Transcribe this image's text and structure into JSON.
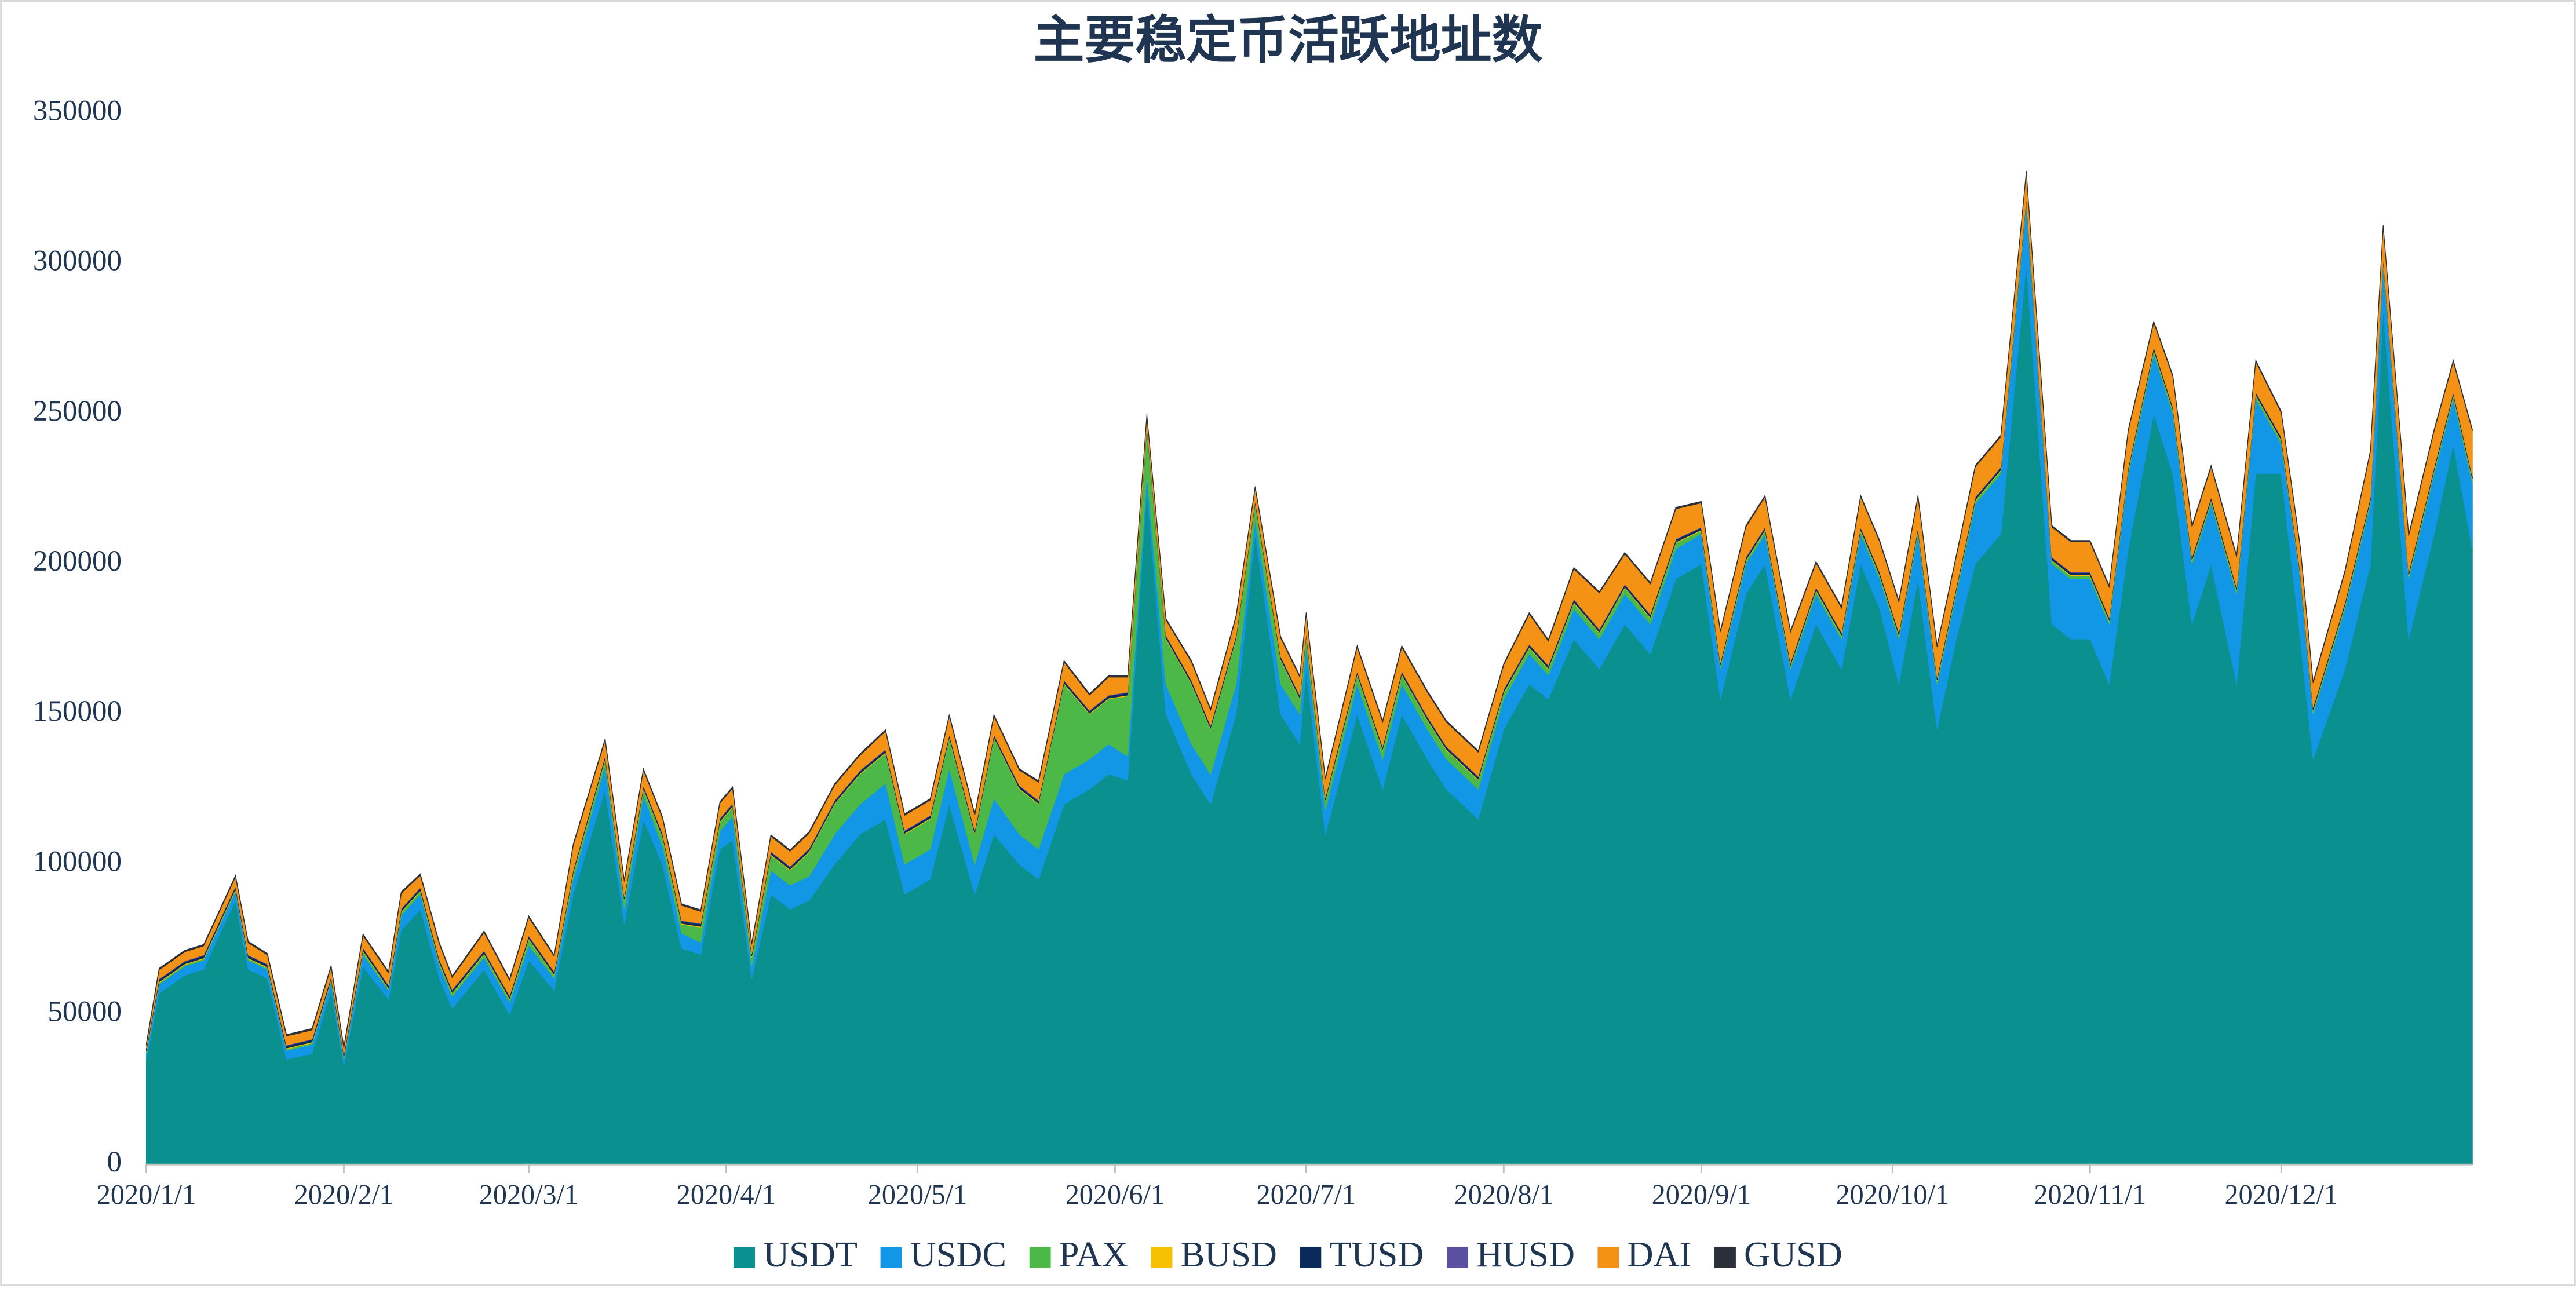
{
  "chart_data": {
    "type": "stacked_area",
    "title": "主要稳定币活跃地址数",
    "x": [
      "2020/1/1",
      "2020/1/3",
      "2020/1/7",
      "2020/1/10",
      "2020/1/15",
      "2020/1/17",
      "2020/1/20",
      "2020/1/23",
      "2020/1/27",
      "2020/1/30",
      "2020/2/1",
      "2020/2/4",
      "2020/2/8",
      "2020/2/10",
      "2020/2/13",
      "2020/2/16",
      "2020/2/18",
      "2020/2/23",
      "2020/2/27",
      "2020/3/1",
      "2020/3/5",
      "2020/3/8",
      "2020/3/13",
      "2020/3/16",
      "2020/3/19",
      "2020/3/22",
      "2020/3/25",
      "2020/3/28",
      "2020/3/31",
      "2020/4/2",
      "2020/4/5",
      "2020/4/8",
      "2020/4/11",
      "2020/4/14",
      "2020/4/18",
      "2020/4/22",
      "2020/4/26",
      "2020/4/29",
      "2020/5/3",
      "2020/5/6",
      "2020/5/10",
      "2020/5/13",
      "2020/5/17",
      "2020/5/20",
      "2020/5/24",
      "2020/5/28",
      "2020/5/31",
      "2020/6/3",
      "2020/6/6",
      "2020/6/9",
      "2020/6/13",
      "2020/6/16",
      "2020/6/20",
      "2020/6/23",
      "2020/6/27",
      "2020/6/30",
      "2020/7/1",
      "2020/7/4",
      "2020/7/9",
      "2020/7/13",
      "2020/7/16",
      "2020/7/20",
      "2020/7/23",
      "2020/7/28",
      "2020/8/1",
      "2020/8/5",
      "2020/8/8",
      "2020/8/12",
      "2020/8/16",
      "2020/8/20",
      "2020/8/24",
      "2020/8/28",
      "2020/9/1",
      "2020/9/4",
      "2020/9/8",
      "2020/9/11",
      "2020/9/15",
      "2020/9/19",
      "2020/9/23",
      "2020/9/26",
      "2020/9/29",
      "2020/10/2",
      "2020/10/5",
      "2020/10/8",
      "2020/10/11",
      "2020/10/14",
      "2020/10/18",
      "2020/10/22",
      "2020/10/26",
      "2020/10/29",
      "2020/11/1",
      "2020/11/4",
      "2020/11/7",
      "2020/11/11",
      "2020/11/14",
      "2020/11/17",
      "2020/11/20",
      "2020/11/24",
      "2020/11/27",
      "2020/12/1",
      "2020/12/4",
      "2020/12/6",
      "2020/12/11",
      "2020/12/15",
      "2020/12/17",
      "2020/12/21",
      "2020/12/25",
      "2020/12/28",
      "2020/12/31"
    ],
    "series": [
      {
        "name": "USDT",
        "color": "#0b9090",
        "values": [
          35000,
          57000,
          63000,
          65000,
          88000,
          65000,
          62000,
          35000,
          37000,
          58000,
          33000,
          66000,
          55000,
          78000,
          85000,
          62000,
          52000,
          65000,
          50000,
          68000,
          58000,
          90000,
          125000,
          80000,
          115000,
          100000,
          72000,
          70000,
          105000,
          108000,
          62000,
          90000,
          85000,
          88000,
          100000,
          110000,
          115000,
          90000,
          95000,
          120000,
          90000,
          110000,
          100000,
          95000,
          120000,
          125000,
          130000,
          128000,
          225000,
          150000,
          130000,
          120000,
          150000,
          210000,
          150000,
          140000,
          165000,
          110000,
          150000,
          125000,
          150000,
          135000,
          125000,
          115000,
          145000,
          160000,
          155000,
          175000,
          165000,
          180000,
          170000,
          195000,
          200000,
          155000,
          190000,
          200000,
          155000,
          180000,
          165000,
          200000,
          185000,
          160000,
          195000,
          145000,
          175000,
          200000,
          210000,
          300000,
          180000,
          175000,
          175000,
          160000,
          205000,
          250000,
          230000,
          180000,
          200000,
          160000,
          230000,
          230000,
          175000,
          135000,
          165000,
          200000,
          285000,
          175000,
          210000,
          240000,
          205000
        ]
      },
      {
        "name": "USDC",
        "color": "#1296e6",
        "values": [
          2000,
          3000,
          3000,
          3000,
          3000,
          3000,
          3000,
          3000,
          3000,
          3000,
          2000,
          4000,
          3000,
          5000,
          5000,
          4000,
          4000,
          4000,
          4000,
          5000,
          4000,
          5000,
          8000,
          5000,
          8000,
          6000,
          5000,
          4000,
          6000,
          8000,
          4000,
          8000,
          8000,
          8000,
          10000,
          10000,
          12000,
          10000,
          10000,
          12000,
          10000,
          12000,
          10000,
          10000,
          10000,
          10000,
          10000,
          8000,
          5000,
          10000,
          10000,
          10000,
          10000,
          5000,
          10000,
          10000,
          8000,
          8000,
          10000,
          10000,
          10000,
          10000,
          10000,
          10000,
          10000,
          10000,
          8000,
          10000,
          10000,
          10000,
          10000,
          10000,
          10000,
          10000,
          10000,
          10000,
          10000,
          10000,
          10000,
          10000,
          10000,
          15000,
          15000,
          15000,
          15000,
          20000,
          20000,
          20000,
          20000,
          20000,
          20000,
          20000,
          25000,
          20000,
          20000,
          20000,
          20000,
          30000,
          25000,
          10000,
          20000,
          15000,
          20000,
          20000,
          15000,
          20000,
          20000,
          15000,
          22000
        ]
      },
      {
        "name": "PAX",
        "color": "#4cb848",
        "values": [
          500,
          500,
          500,
          500,
          500,
          500,
          500,
          500,
          500,
          500,
          500,
          1000,
          500,
          1000,
          1000,
          1000,
          1000,
          1000,
          1000,
          2000,
          1000,
          2000,
          2000,
          3000,
          2000,
          3000,
          3000,
          5000,
          3000,
          3000,
          3000,
          5000,
          5000,
          8000,
          10000,
          10000,
          10000,
          10000,
          10000,
          10000,
          10000,
          20000,
          15000,
          15000,
          30000,
          15000,
          15000,
          20000,
          15000,
          15000,
          20000,
          15000,
          15000,
          5000,
          8000,
          5000,
          3000,
          3000,
          3000,
          3000,
          3000,
          3000,
          3000,
          3000,
          2000,
          2000,
          2000,
          2000,
          2000,
          2000,
          2000,
          2000,
          1000,
          1000,
          1000,
          1000,
          1000,
          1000,
          1000,
          1000,
          1000,
          1000,
          1000,
          1000,
          1000,
          1000,
          1000,
          1000,
          1000,
          1000,
          1000,
          1000,
          1000,
          1000,
          1000,
          1000,
          1000,
          1000,
          1000,
          1000,
          1000,
          1000,
          1000,
          1000,
          1000,
          1000,
          1000,
          1000,
          1000
        ]
      },
      {
        "name": "BUSD",
        "color": "#f5c000",
        "values": [
          300,
          300,
          300,
          300,
          300,
          300,
          300,
          300,
          300,
          300,
          300,
          300,
          300,
          300,
          300,
          300,
          300,
          300,
          300,
          300,
          300,
          300,
          300,
          300,
          300,
          300,
          300,
          300,
          300,
          300,
          300,
          300,
          300,
          300,
          300,
          300,
          300,
          300,
          300,
          300,
          300,
          300,
          300,
          300,
          300,
          300,
          300,
          300,
          300,
          300,
          300,
          300,
          300,
          300,
          300,
          300,
          300,
          300,
          300,
          300,
          300,
          300,
          300,
          300,
          300,
          300,
          300,
          300,
          300,
          300,
          300,
          300,
          300,
          300,
          300,
          300,
          300,
          300,
          300,
          300,
          300,
          300,
          300,
          300,
          300,
          300,
          300,
          300,
          300,
          300,
          300,
          300,
          300,
          300,
          300,
          300,
          300,
          300,
          300,
          300,
          300,
          300,
          300,
          300,
          300,
          300,
          300,
          300,
          300
        ]
      },
      {
        "name": "TUSD",
        "color": "#0a2a5c",
        "values": [
          800,
          800,
          800,
          800,
          800,
          800,
          800,
          800,
          800,
          800,
          800,
          800,
          800,
          800,
          800,
          800,
          800,
          800,
          800,
          800,
          800,
          800,
          800,
          800,
          800,
          800,
          800,
          800,
          800,
          800,
          800,
          800,
          800,
          800,
          800,
          800,
          800,
          800,
          800,
          800,
          800,
          800,
          800,
          800,
          800,
          800,
          800,
          800,
          800,
          800,
          800,
          800,
          800,
          800,
          800,
          800,
          800,
          800,
          800,
          800,
          800,
          800,
          800,
          800,
          800,
          800,
          800,
          800,
          800,
          800,
          800,
          800,
          800,
          800,
          800,
          800,
          800,
          800,
          800,
          800,
          800,
          800,
          800,
          800,
          800,
          800,
          800,
          800,
          800,
          800,
          800,
          800,
          800,
          800,
          800,
          800,
          800,
          800,
          800,
          800,
          800,
          800,
          800,
          800,
          800,
          800,
          800,
          800,
          800
        ]
      },
      {
        "name": "HUSD",
        "color": "#5a4fa0",
        "values": [
          200,
          200,
          200,
          200,
          200,
          200,
          200,
          200,
          200,
          200,
          200,
          200,
          200,
          200,
          200,
          200,
          200,
          200,
          200,
          200,
          200,
          200,
          200,
          200,
          200,
          200,
          200,
          200,
          200,
          200,
          200,
          200,
          200,
          200,
          200,
          200,
          200,
          200,
          200,
          200,
          200,
          200,
          200,
          200,
          200,
          200,
          200,
          200,
          200,
          200,
          200,
          200,
          200,
          200,
          200,
          200,
          200,
          200,
          200,
          200,
          200,
          200,
          200,
          200,
          200,
          200,
          200,
          200,
          200,
          200,
          200,
          200,
          200,
          200,
          200,
          200,
          200,
          200,
          200,
          200,
          200,
          200,
          200,
          200,
          200,
          200,
          200,
          200,
          200,
          200,
          200,
          200,
          200,
          200,
          200,
          200,
          200,
          200,
          200,
          200,
          200,
          200,
          200,
          200,
          200,
          200,
          200,
          200,
          200
        ]
      },
      {
        "name": "DAI",
        "color": "#f39214",
        "values": [
          1000,
          3000,
          3000,
          3000,
          3000,
          4000,
          3000,
          3000,
          3000,
          3000,
          2000,
          4000,
          4000,
          5000,
          4000,
          5000,
          4000,
          6000,
          5000,
          6000,
          5000,
          8000,
          5000,
          5000,
          5000,
          5000,
          5000,
          4000,
          5000,
          5000,
          3000,
          5000,
          5000,
          5000,
          5000,
          5000,
          6000,
          5000,
          5000,
          6000,
          5000,
          6000,
          5000,
          6000,
          6000,
          5000,
          6000,
          5000,
          3000,
          5000,
          6000,
          5000,
          6000,
          4000,
          6000,
          6000,
          6000,
          6000,
          8000,
          8000,
          8000,
          8000,
          8000,
          8000,
          8000,
          10000,
          8000,
          10000,
          12000,
          10000,
          10000,
          10000,
          8000,
          10000,
          10000,
          10000,
          10000,
          8000,
          8000,
          10000,
          10000,
          10000,
          10000,
          10000,
          10000,
          10000,
          10000,
          8000,
          10000,
          10000,
          10000,
          10000,
          12000,
          8000,
          10000,
          10000,
          10000,
          10000,
          10000,
          8000,
          8000,
          8000,
          10000,
          15000,
          10000,
          12000,
          12000,
          10000,
          15000
        ]
      },
      {
        "name": "GUSD",
        "color": "#2a2f3a",
        "values": [
          500,
          500,
          500,
          500,
          500,
          500,
          500,
          500,
          500,
          500,
          500,
          500,
          500,
          500,
          500,
          500,
          500,
          500,
          500,
          500,
          500,
          500,
          500,
          500,
          500,
          500,
          500,
          500,
          500,
          500,
          500,
          500,
          500,
          500,
          500,
          500,
          500,
          500,
          500,
          500,
          500,
          500,
          500,
          500,
          500,
          500,
          500,
          500,
          500,
          500,
          500,
          500,
          500,
          500,
          500,
          500,
          500,
          500,
          500,
          500,
          500,
          500,
          500,
          500,
          500,
          500,
          500,
          500,
          500,
          500,
          500,
          500,
          500,
          500,
          500,
          500,
          500,
          500,
          500,
          500,
          500,
          500,
          500,
          500,
          500,
          500,
          500,
          500,
          500,
          500,
          500,
          500,
          500,
          500,
          500,
          500,
          500,
          500,
          500,
          500,
          500,
          500,
          500,
          500,
          500,
          500,
          500,
          500,
          500
        ]
      }
    ],
    "xlim": [
      "2020/1/1",
      "2020/12/31"
    ],
    "xticks": [
      "2020/1/1",
      "2020/2/1",
      "2020/3/1",
      "2020/4/1",
      "2020/5/1",
      "2020/6/1",
      "2020/7/1",
      "2020/8/1",
      "2020/9/1",
      "2020/10/1",
      "2020/11/1",
      "2020/12/1"
    ],
    "ylim": [
      0,
      350000
    ],
    "yticks": [
      0,
      50000,
      100000,
      150000,
      200000,
      250000,
      300000,
      350000
    ],
    "grid": false,
    "legend": "bottom"
  }
}
